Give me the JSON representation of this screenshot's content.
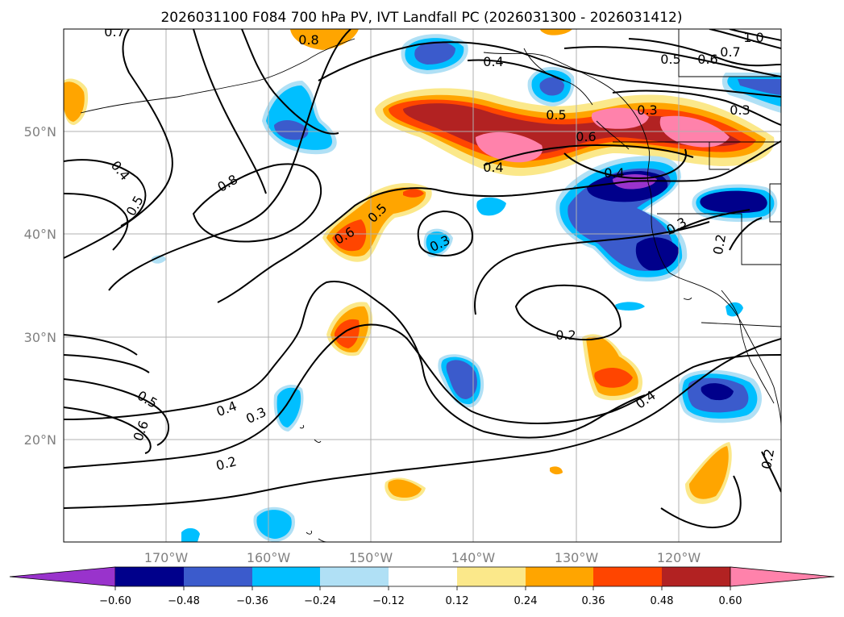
{
  "title": "2026031100 F084 700 hPa PV, IVT Landfall PC (2026031300 - 2026031412)",
  "map": {
    "projection": "PlateCarree",
    "lon_range": [
      -180,
      -110
    ],
    "lat_range": [
      10,
      60
    ],
    "lat_labels": [
      "20°N",
      "30°N",
      "40°N",
      "50°N"
    ],
    "lon_labels": [
      "170°W",
      "160°W",
      "150°W",
      "140°W",
      "130°W",
      "120°W"
    ],
    "gridlines": true
  },
  "colorbar": {
    "extend": "both",
    "tick_labels": [
      "−0.60",
      "−0.48",
      "−0.36",
      "−0.24",
      "−0.12",
      "0.12",
      "0.24",
      "0.36",
      "0.48",
      "0.60"
    ],
    "colors": [
      "#9933cc",
      "#00008b",
      "#3b5bcc",
      "#00bfff",
      "#b0e0f5",
      "#ffffff",
      "#fbe88a",
      "#ffa500",
      "#ff4500",
      "#b22222",
      "#ff82ab"
    ]
  },
  "contour_labels": [
    "0.7",
    "0.8",
    "0.4",
    "0.5",
    "0.6",
    "0.7",
    "1.0",
    "0.3",
    "0.4",
    "0.5",
    "0.6",
    "0.3",
    "0.4",
    "0.8",
    "0.5",
    "0.6",
    "0.5",
    "0.3",
    "0.3",
    "0.2",
    "0.2",
    "0.4",
    "0.5",
    "0.6",
    "0.4",
    "0.3",
    "0.2",
    "0.2",
    "0.4"
  ]
}
